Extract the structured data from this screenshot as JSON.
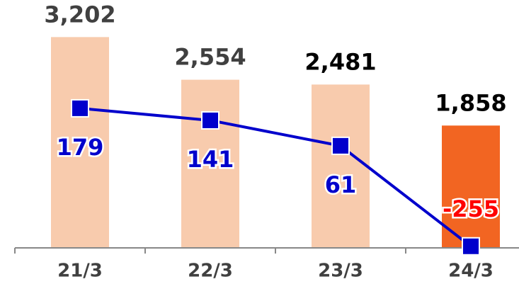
{
  "chart_data": {
    "type": "bar+line",
    "categories": [
      "21/3",
      "22/3",
      "23/3",
      "24/3"
    ],
    "ylim": [
      0,
      3550
    ],
    "y2lim": [
      -260,
      475
    ],
    "series": [
      {
        "type": "bar",
        "colors": [
          "#f8cbad",
          "#f8cbad",
          "#f8cbad",
          "#f26522"
        ],
        "values": [
          3202,
          2554,
          2481,
          1858
        ],
        "value_labels": [
          "3,202",
          "2,554",
          "2,481",
          "1,858"
        ],
        "label_colors": [
          "#404040",
          "#404040",
          "#000000",
          "#000000"
        ]
      },
      {
        "type": "line",
        "axis": "y2",
        "color": "#0000cc",
        "values": [
          179,
          141,
          61,
          -255
        ],
        "label_colors": [
          "#0000cc",
          "#0000cc",
          "#0000cc",
          "#ff0000"
        ]
      }
    ]
  }
}
